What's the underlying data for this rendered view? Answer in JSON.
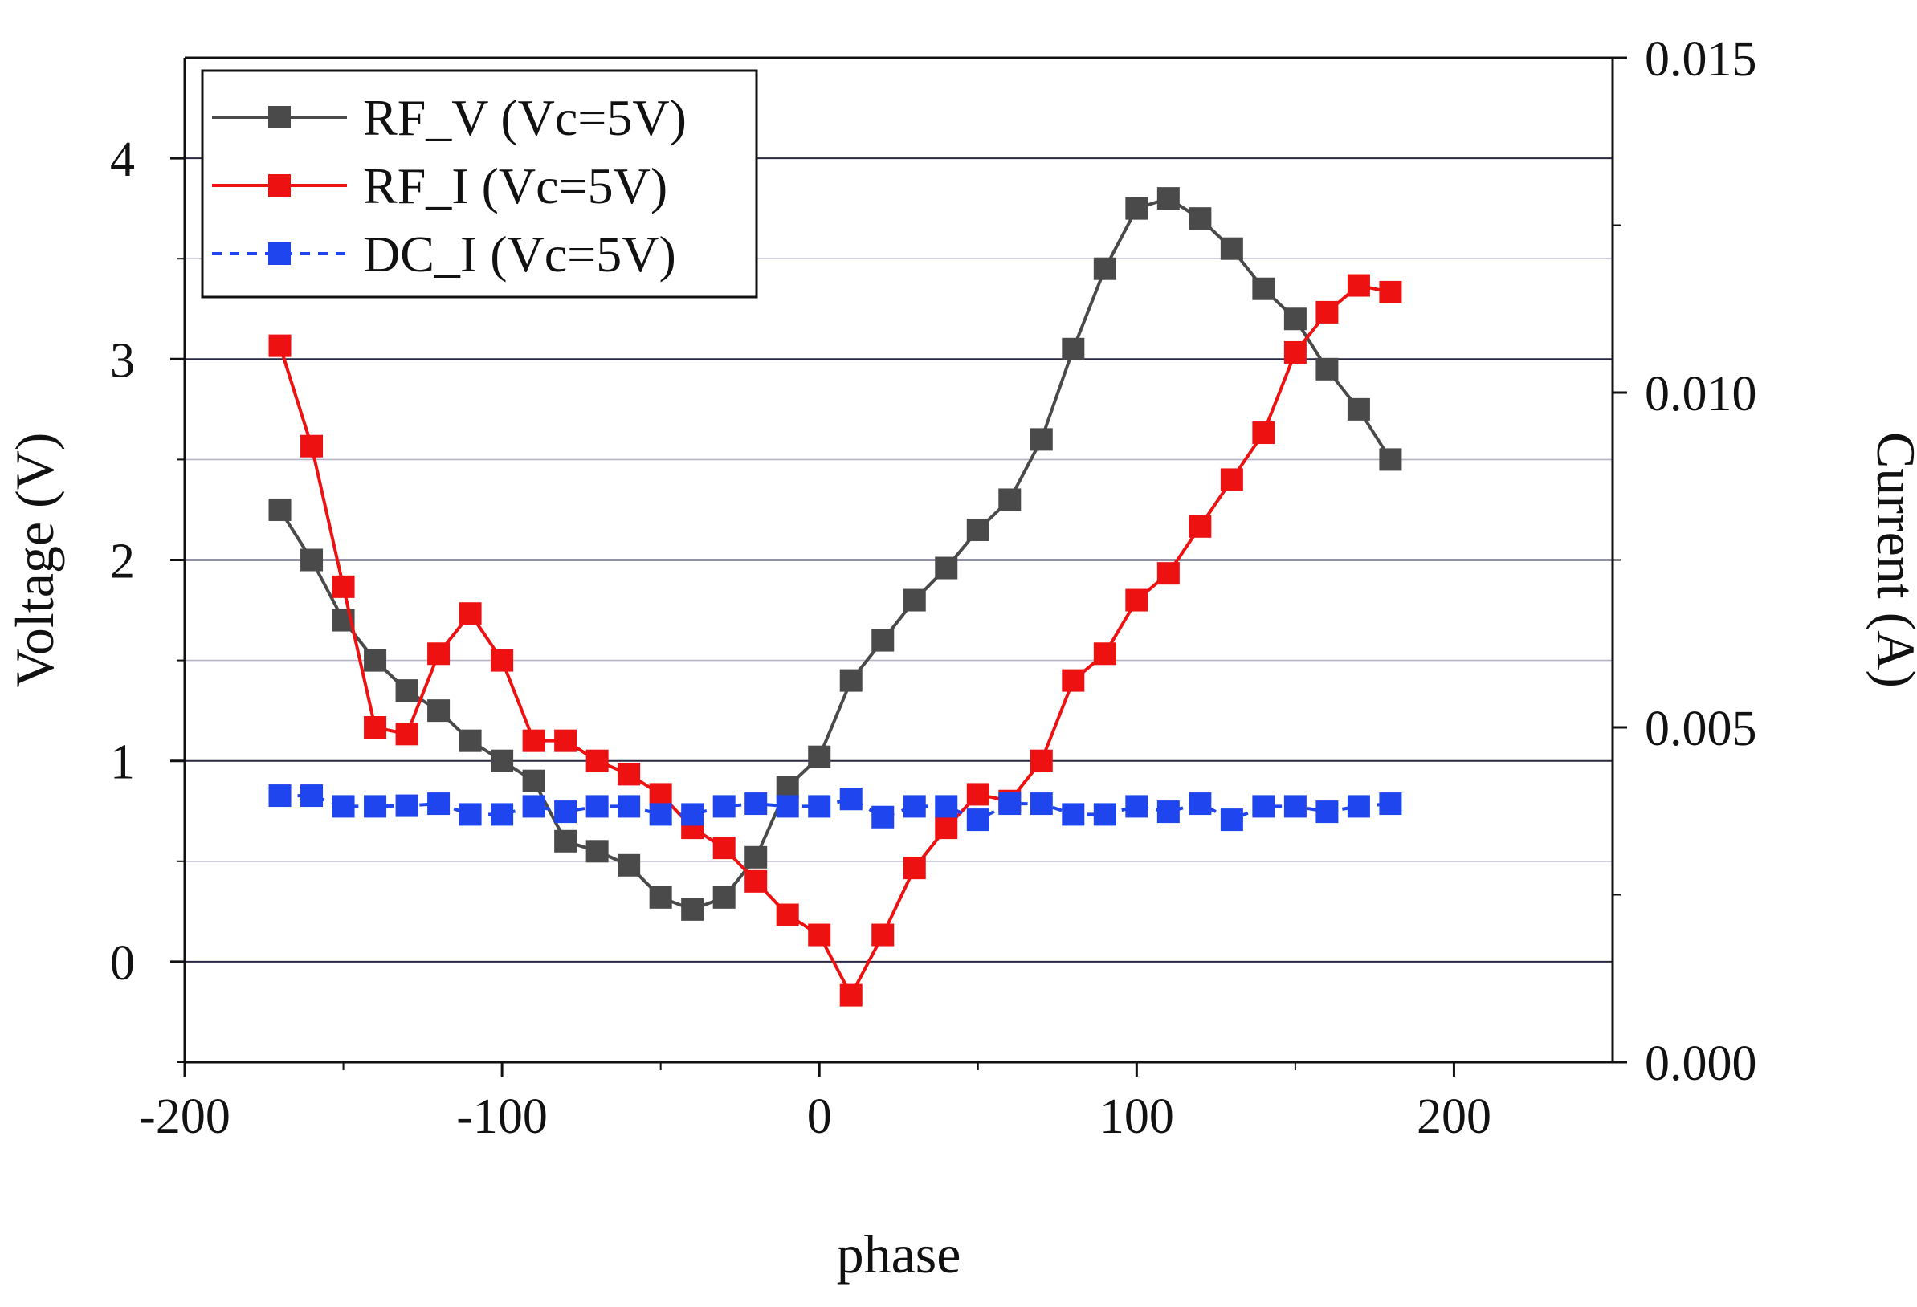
{
  "chart_data": {
    "type": "line",
    "title": "",
    "xlabel": "phase",
    "ylabel": "Voltage (V)",
    "y2label": "Current (A)",
    "xlim": [
      -200,
      250
    ],
    "ylim": [
      -0.5,
      4.5
    ],
    "y2lim": [
      0,
      0.015
    ],
    "x_ticks": [
      -200,
      -100,
      0,
      100,
      200
    ],
    "x_tick_labels": [
      "-200",
      "-100",
      "0",
      "100",
      "200"
    ],
    "y_ticks": [
      0,
      1,
      2,
      3,
      4
    ],
    "y_tick_labels": [
      "0",
      "1",
      "2",
      "3",
      "4"
    ],
    "y2_ticks": [
      0,
      0.005,
      0.01,
      0.015
    ],
    "y2_tick_labels": [
      "0.000",
      "0.005",
      "0.010",
      "0.015"
    ],
    "y_minor_ticks": [
      -0.5,
      0.5,
      1.5,
      2.5,
      3.5
    ],
    "y2_minor_ticks": [
      0.0025,
      0.0075,
      0.0125
    ],
    "gridlines_y": [
      0,
      0.5,
      1,
      1.5,
      2,
      2.5,
      3,
      3.5,
      4
    ],
    "grid": true,
    "legend_position": "top-left",
    "series": [
      {
        "name": "RF_V (Vc=5V)",
        "axis": "left",
        "color": "#4a4a4a",
        "x": [
          -170,
          -160,
          -150,
          -140,
          -130,
          -120,
          -110,
          -100,
          -90,
          -80,
          -70,
          -60,
          -50,
          -40,
          -30,
          -20,
          -10,
          0,
          10,
          20,
          30,
          40,
          50,
          60,
          70,
          80,
          90,
          100,
          110,
          120,
          130,
          140,
          150,
          160,
          170,
          180
        ],
        "y": [
          2.25,
          2.0,
          1.7,
          1.5,
          1.35,
          1.25,
          1.1,
          1.0,
          0.9,
          0.6,
          0.55,
          0.48,
          0.32,
          0.26,
          0.32,
          0.52,
          0.87,
          1.02,
          1.4,
          1.6,
          1.8,
          1.96,
          2.15,
          2.3,
          2.6,
          3.05,
          3.45,
          3.75,
          3.8,
          3.7,
          3.55,
          3.35,
          3.2,
          2.95,
          2.75,
          2.5
        ]
      },
      {
        "name": "RF_I (Vc=5V)",
        "axis": "right",
        "color": "#ee1111",
        "x": [
          -170,
          -160,
          -150,
          -140,
          -130,
          -120,
          -110,
          -100,
          -90,
          -80,
          -70,
          -60,
          -50,
          -40,
          -30,
          -20,
          -10,
          0,
          10,
          20,
          30,
          40,
          50,
          60,
          70,
          80,
          90,
          100,
          110,
          120,
          130,
          140,
          150,
          160,
          170,
          180
        ],
        "y": [
          0.0107,
          0.0092,
          0.0071,
          0.005,
          0.0049,
          0.0061,
          0.0067,
          0.006,
          0.0048,
          0.0048,
          0.0045,
          0.0043,
          0.004,
          0.0035,
          0.0032,
          0.0027,
          0.0022,
          0.0019,
          0.001,
          0.0019,
          0.0029,
          0.0035,
          0.004,
          0.0039,
          0.0045,
          0.0057,
          0.0061,
          0.0069,
          0.0073,
          0.008,
          0.0087,
          0.0094,
          0.0106,
          0.0112,
          0.0116,
          0.0115
        ]
      },
      {
        "name": "DC_I (Vc=5V)",
        "axis": "right",
        "color": "#1f45ee",
        "x": [
          -170,
          -160,
          -150,
          -140,
          -130,
          -120,
          -110,
          -100,
          -90,
          -80,
          -70,
          -60,
          -50,
          -40,
          -30,
          -20,
          -10,
          0,
          10,
          20,
          30,
          40,
          50,
          60,
          70,
          80,
          90,
          100,
          110,
          120,
          130,
          140,
          150,
          160,
          170,
          180
        ],
        "y": [
          0.00398,
          0.00398,
          0.00382,
          0.00382,
          0.00383,
          0.00386,
          0.0037,
          0.0037,
          0.00382,
          0.00374,
          0.00382,
          0.00382,
          0.0037,
          0.0037,
          0.00382,
          0.00386,
          0.00382,
          0.00382,
          0.00393,
          0.00366,
          0.00382,
          0.00382,
          0.00362,
          0.00386,
          0.00386,
          0.0037,
          0.0037,
          0.00382,
          0.00374,
          0.00386,
          0.00362,
          0.00382,
          0.00382,
          0.00374,
          0.00382,
          0.00386
        ]
      }
    ]
  }
}
